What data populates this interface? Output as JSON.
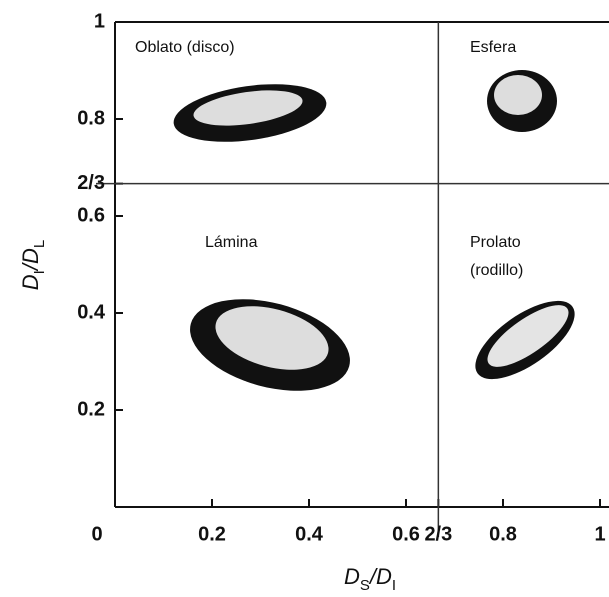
{
  "chart_data": {
    "type": "zingg",
    "xlabel": "DS/DI",
    "ylabel": "DI/DL",
    "xlim": [
      0,
      1
    ],
    "ylim": [
      0,
      1
    ],
    "xticks": [
      0,
      0.2,
      0.4,
      0.6,
      {
        "value": 0.6667,
        "label": "2/3"
      },
      0.8,
      1
    ],
    "yticks": [
      0.2,
      0.4,
      0.6,
      {
        "value": 0.6667,
        "label": "2/3"
      },
      0.8,
      1
    ],
    "regions": [
      {
        "lines": [
          "Oblato (disco)"
        ]
      },
      {
        "lines": [
          "Esfera"
        ]
      },
      {
        "lines": [
          "Lámina"
        ]
      },
      {
        "lines": [
          "Prolato",
          "(rodillo)"
        ]
      }
    ]
  }
}
